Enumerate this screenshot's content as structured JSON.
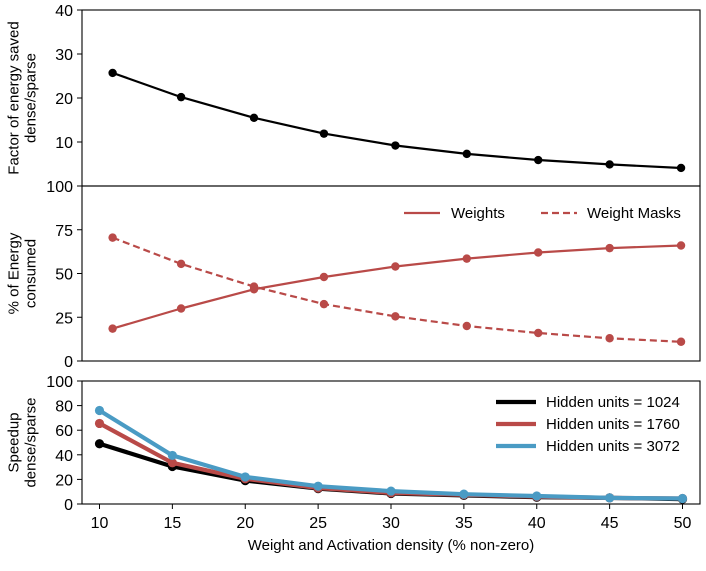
{
  "chart_data": [
    {
      "type": "line",
      "title": "",
      "xlabel": "",
      "ylabel": [
        "Factor of energy saved",
        "dense/sparse"
      ],
      "xlim": [
        8.8,
        51.2
      ],
      "ylim": [
        0,
        40
      ],
      "yticks": [
        10,
        20,
        30,
        40
      ],
      "ytick_labels": [
        "10",
        "20",
        "30",
        "40"
      ],
      "legend": [],
      "series": [
        {
          "name": "Energy saved",
          "color": "#000000",
          "dash": false,
          "x": [
            10.9,
            15.6,
            20.6,
            25.4,
            30.3,
            35.2,
            40.1,
            45.0,
            49.9
          ],
          "values": [
            25.7,
            20.2,
            15.5,
            11.9,
            9.2,
            7.3,
            5.9,
            4.9,
            4.1
          ]
        }
      ]
    },
    {
      "type": "line",
      "title": "",
      "xlabel": "",
      "ylabel": [
        "% of Energy",
        "consumed"
      ],
      "xlim": [
        8.8,
        51.2
      ],
      "ylim": [
        0,
        100
      ],
      "yticks": [
        0,
        25,
        50,
        75,
        100
      ],
      "ytick_labels": [
        "0",
        "25",
        "50",
        "75",
        "100"
      ],
      "legend": [
        "Weights",
        "Weight Masks"
      ],
      "series": [
        {
          "name": "Weights",
          "color": "#b94a48",
          "dash": false,
          "x": [
            10.9,
            15.6,
            20.6,
            25.4,
            30.3,
            35.2,
            40.1,
            45.0,
            49.9
          ],
          "values": [
            18.5,
            30,
            41,
            48,
            54,
            58.5,
            62,
            64.5,
            66
          ]
        },
        {
          "name": "Weight Masks",
          "color": "#b94a48",
          "dash": true,
          "x": [
            10.9,
            15.6,
            20.6,
            25.4,
            30.3,
            35.2,
            40.1,
            45.0,
            49.9
          ],
          "values": [
            70.5,
            55.5,
            42.5,
            32.5,
            25.5,
            20,
            16,
            13,
            11
          ]
        }
      ]
    },
    {
      "type": "line",
      "title": "",
      "xlabel": "Weight and Activation density (% non-zero)",
      "ylabel": [
        "Speedup",
        "dense/sparse"
      ],
      "xlim": [
        8.8,
        51.2
      ],
      "ylim": [
        0,
        100
      ],
      "yticks": [
        0,
        20,
        40,
        60,
        80,
        100
      ],
      "ytick_labels": [
        "0",
        "20",
        "40",
        "60",
        "80",
        "100"
      ],
      "xticks": [
        10,
        15,
        20,
        25,
        30,
        35,
        40,
        45,
        50
      ],
      "xtick_labels": [
        "10",
        "15",
        "20",
        "25",
        "30",
        "35",
        "40",
        "45",
        "50"
      ],
      "legend": [
        "Hidden units = 1024",
        "Hidden units = 1760",
        "Hidden units = 3072"
      ],
      "series": [
        {
          "name": "Hidden units = 1024",
          "color": "#000000",
          "dash": false,
          "x": [
            10,
            15,
            20,
            25,
            30,
            35,
            40,
            45,
            50
          ],
          "values": [
            49,
            30.5,
            19,
            12.5,
            8.5,
            7,
            5.5,
            5,
            4
          ]
        },
        {
          "name": "Hidden units = 1760",
          "color": "#b94a48",
          "dash": false,
          "x": [
            10,
            15,
            20,
            25,
            30,
            35,
            40,
            45,
            50
          ],
          "values": [
            65.5,
            33.5,
            20.5,
            13,
            9,
            7.5,
            6,
            5,
            4.5
          ]
        },
        {
          "name": "Hidden units = 3072",
          "color": "#4a9bc4",
          "dash": false,
          "x": [
            10,
            15,
            20,
            25,
            30,
            35,
            40,
            45,
            50
          ],
          "values": [
            76,
            39.5,
            22,
            14.5,
            10.5,
            8,
            6.5,
            5,
            4.5
          ]
        }
      ]
    }
  ]
}
